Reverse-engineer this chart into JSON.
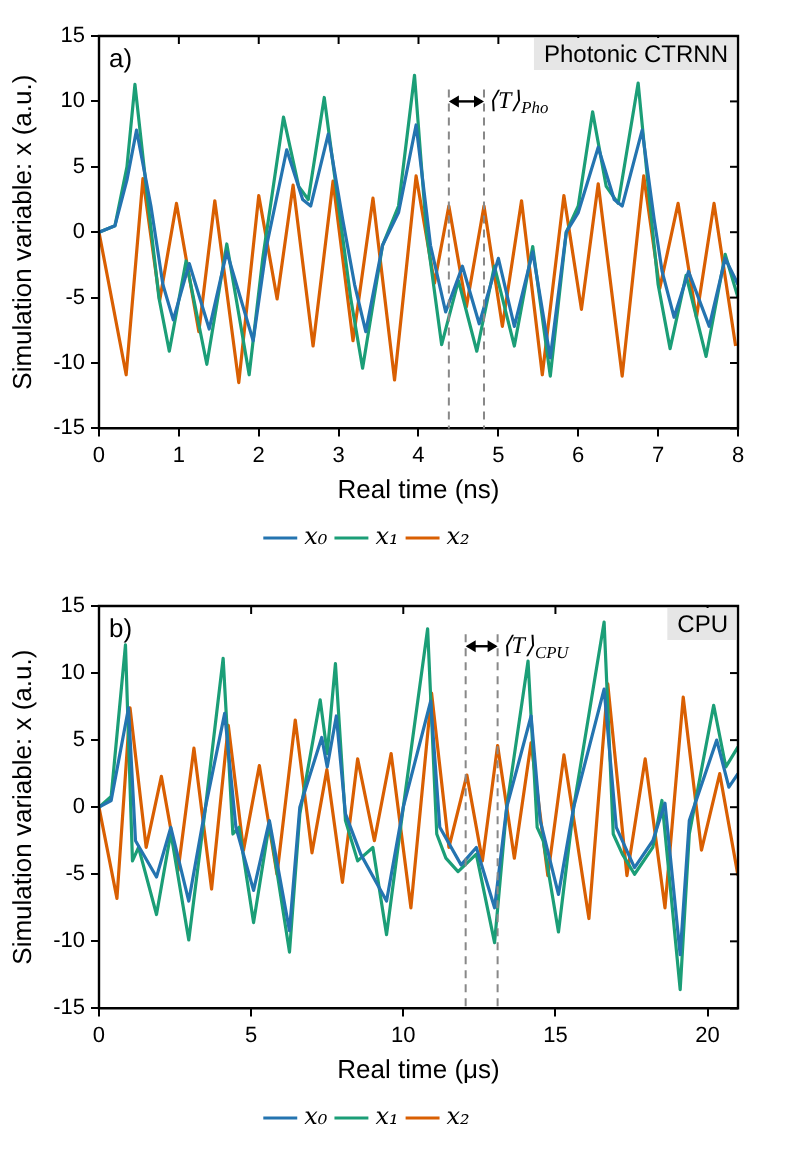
{
  "chart_data": [
    {
      "type": "line",
      "xlabel": "Real time (ns)",
      "ylabel": "Simulation variable: x (a.u.)",
      "xlim": [
        0,
        8
      ],
      "xticks": [
        0,
        1,
        2,
        3,
        4,
        5,
        6,
        7,
        8
      ],
      "ylim": [
        -15,
        15
      ],
      "yticks": [
        -15,
        -10,
        -5,
        0,
        5,
        10,
        15
      ],
      "grid": false,
      "legend": "bottom",
      "marker": "none",
      "line_style": "solid",
      "annotations": [
        "a)",
        "Photonic CTRNN",
        {
          "text": "⟨T⟩$_{Pho}$",
          "x": 4.82,
          "y": 10
        }
      ],
      "ref_lines": [
        {
          "axis": "x",
          "value": 4.38,
          "color": "#888888",
          "line_style": "dashed"
        },
        {
          "axis": "x",
          "value": 4.82,
          "color": "#888888",
          "line_style": "dashed"
        }
      ],
      "series": [
        {
          "name": "x₀",
          "color": "#2474b0",
          "x": [
            0,
            0.2,
            0.35,
            0.47,
            0.65,
            0.8,
            0.93,
            1.13,
            1.38,
            1.6,
            1.93,
            2.1,
            2.35,
            2.55,
            2.65,
            2.87,
            3.05,
            3.2,
            3.34,
            3.55,
            3.75,
            3.97,
            4.15,
            4.34,
            4.55,
            4.76,
            5.0,
            5.2,
            5.43,
            5.65,
            5.85,
            6.0,
            6.25,
            6.45,
            6.55,
            6.8,
            6.95,
            7.05,
            7.2,
            7.38,
            7.64,
            7.84,
            8
          ],
          "values": [
            0,
            0.5,
            4,
            7.8,
            2,
            -4,
            -6.7,
            -2.4,
            -7.4,
            -1.5,
            -8.3,
            -1,
            6.3,
            2.5,
            2,
            7.5,
            1,
            -4,
            -7.6,
            -1,
            1.5,
            8.2,
            -1,
            -6.1,
            -2.6,
            -7,
            -2,
            -7.2,
            -1.5,
            -9.6,
            0,
            1.5,
            6.5,
            2.5,
            2,
            7.8,
            1,
            -3,
            -6.5,
            -3,
            -7.2,
            -2,
            -4
          ]
        },
        {
          "name": "x₁",
          "color": "#1b9e77",
          "x": [
            0,
            0.2,
            0.35,
            0.45,
            0.6,
            0.75,
            0.88,
            1.09,
            1.35,
            1.6,
            1.88,
            2.05,
            2.31,
            2.5,
            2.62,
            2.82,
            3.0,
            3.15,
            3.3,
            3.55,
            3.75,
            3.95,
            4.1,
            4.29,
            4.5,
            4.73,
            4.95,
            5.2,
            5.43,
            5.65,
            5.85,
            6.0,
            6.18,
            6.35,
            6.5,
            6.75,
            6.9,
            7.0,
            7.15,
            7.35,
            7.6,
            7.84,
            8
          ],
          "values": [
            0,
            0.5,
            5,
            11.3,
            3,
            -5,
            -9.1,
            -2.2,
            -10.1,
            -0.9,
            -10.9,
            -2,
            8.8,
            3.5,
            2.5,
            10.3,
            2,
            -5,
            -10.4,
            -1,
            2,
            12,
            0,
            -8.6,
            -3.7,
            -9.1,
            -2.6,
            -8.7,
            -1.1,
            -11,
            0,
            2,
            9.2,
            3.5,
            2.2,
            11.4,
            2,
            -4,
            -8.9,
            -3.3,
            -9.5,
            -1.7,
            -5
          ]
        },
        {
          "name": "x₂",
          "color": "#d95f02",
          "x": [
            0,
            0.34,
            0.55,
            0.76,
            0.97,
            1.25,
            1.45,
            1.75,
            2.0,
            2.23,
            2.43,
            2.68,
            2.93,
            3.18,
            3.43,
            3.7,
            3.97,
            4.2,
            4.38,
            4.6,
            4.82,
            5.05,
            5.29,
            5.55,
            5.82,
            6.04,
            6.25,
            6.55,
            6.82,
            7.02,
            7.25,
            7.48,
            7.7,
            7.97
          ],
          "values": [
            0,
            -10.9,
            4.1,
            -5.2,
            2.2,
            -7.6,
            2.4,
            -11.5,
            2.8,
            -5.1,
            3.6,
            -8.7,
            3.9,
            -8.3,
            2.6,
            -11.3,
            4.3,
            -3.9,
            2,
            -5.7,
            2,
            -7.2,
            2.4,
            -10.9,
            2.8,
            -5.9,
            3.7,
            -11,
            4.3,
            -4.3,
            2.2,
            -6.5,
            2.2,
            -8.7
          ]
        }
      ]
    },
    {
      "type": "line",
      "xlabel": "Real time (μs)",
      "ylabel": "Simulation variable: x (a.u.)",
      "xlim": [
        0,
        21
      ],
      "xticks": [
        0,
        5,
        10,
        15,
        20
      ],
      "ylim": [
        -15,
        15
      ],
      "yticks": [
        -15,
        -10,
        -5,
        0,
        5,
        10,
        15
      ],
      "grid": false,
      "legend": "bottom",
      "marker": "none",
      "line_style": "solid",
      "annotations": [
        "b)",
        "CPU",
        {
          "text": "⟨T⟩$_{CPU}$",
          "x": 13.1,
          "y": 12
        }
      ],
      "ref_lines": [
        {
          "axis": "x",
          "value": 12.05,
          "color": "#888888",
          "line_style": "dashed"
        },
        {
          "axis": "x",
          "value": 13.1,
          "color": "#888888",
          "line_style": "dashed"
        }
      ],
      "series": [
        {
          "name": "x₀",
          "color": "#2474b0",
          "x": [
            0,
            0.4,
            0.97,
            1.2,
            1.89,
            2.36,
            2.95,
            3.5,
            4.13,
            4.5,
            5.08,
            5.6,
            6.26,
            6.6,
            7.32,
            7.5,
            7.8,
            8.1,
            8.6,
            9.45,
            10,
            10.9,
            11.2,
            11.9,
            12.4,
            13.0,
            13.4,
            14.2,
            14.5,
            15.1,
            15.6,
            16.6,
            17,
            17.6,
            18.2,
            18.6,
            19.1,
            19.4,
            20.3,
            20.7,
            21
          ],
          "values": [
            0,
            0.5,
            7.4,
            -2.5,
            -5.2,
            -1.5,
            -7,
            0,
            7,
            -1.5,
            -6.2,
            -1,
            -9.2,
            0,
            5.2,
            3,
            6.8,
            -0.5,
            -3.5,
            -7,
            0,
            7.9,
            -1.5,
            -4.3,
            -3,
            -7.5,
            0,
            6.8,
            -1,
            -6.5,
            0,
            8.8,
            -1.5,
            -4.5,
            -2.5,
            0.3,
            -11,
            -1,
            5,
            1.5,
            2.5
          ]
        },
        {
          "name": "x₁",
          "color": "#1b9e77",
          "x": [
            0,
            0.4,
            0.87,
            1.1,
            1.3,
            1.89,
            2.36,
            2.95,
            3.5,
            4.08,
            4.4,
            4.6,
            5.08,
            5.6,
            6.26,
            6.6,
            7.27,
            7.5,
            7.77,
            8.1,
            8.5,
            9.0,
            9.45,
            10,
            10.8,
            11.1,
            11.4,
            11.8,
            12.4,
            13.0,
            13.4,
            14.1,
            14.4,
            14.6,
            15.1,
            15.6,
            16.6,
            16.9,
            17.2,
            17.6,
            18.2,
            18.5,
            19.1,
            19.4,
            20.2,
            20.6,
            21
          ],
          "values": [
            0,
            0.8,
            12.1,
            -4,
            -3,
            -8,
            -1.9,
            -9.9,
            0,
            11.1,
            -2,
            -1.5,
            -8.6,
            -1.2,
            -10.8,
            -0.5,
            8,
            4,
            10.7,
            -1,
            -4,
            -3,
            -9.5,
            0,
            13.3,
            -2,
            -3.8,
            -4.8,
            -3.5,
            -10.1,
            0,
            10.9,
            -1.5,
            -2.5,
            -9.3,
            0,
            13.8,
            -2,
            -3.5,
            -5,
            -3,
            0.5,
            -13.6,
            -2,
            7.6,
            3,
            4.5
          ]
        },
        {
          "name": "x₂",
          "color": "#d95f02",
          "x": [
            0,
            0.59,
            1.02,
            1.55,
            2.05,
            2.6,
            3.12,
            3.7,
            4.25,
            4.75,
            5.27,
            5.85,
            6.45,
            7.0,
            7.49,
            8.0,
            8.5,
            9.05,
            9.6,
            10.25,
            10.93,
            11.5,
            12.09,
            12.6,
            13.1,
            13.65,
            14.2,
            14.75,
            15.28,
            16.1,
            16.72,
            17.35,
            17.95,
            18.6,
            19.2,
            19.8,
            20.4,
            21
          ],
          "values": [
            0,
            -6.8,
            7.4,
            -3,
            2.3,
            -4.7,
            4.4,
            -6.1,
            6.1,
            -3.2,
            3.1,
            -5,
            6.5,
            -3.4,
            2.8,
            -5.6,
            3.6,
            -2.5,
            4,
            -7.5,
            8.5,
            -3,
            2.4,
            -4,
            4.6,
            -3.8,
            4.8,
            -5.1,
            3.9,
            -8.3,
            9.2,
            -5.1,
            3.6,
            -7.5,
            8.2,
            -3.2,
            2.5,
            -5.1
          ]
        }
      ]
    }
  ]
}
